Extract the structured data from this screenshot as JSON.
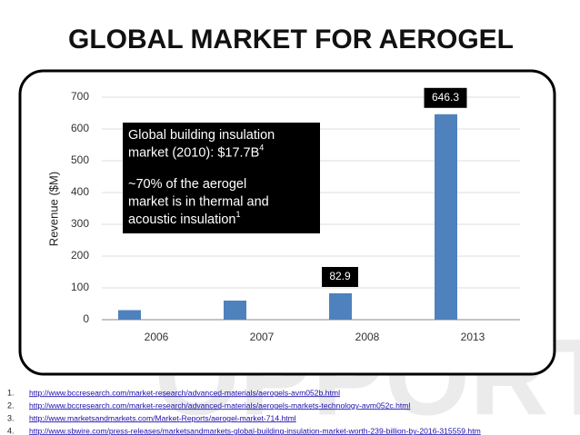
{
  "chart_data": {
    "type": "bar",
    "title": "GLOBAL MARKET FOR AEROGEL",
    "y_label": "Revenue ($M)",
    "categories": [
      "2006",
      "2007",
      "2008",
      "2013"
    ],
    "values": [
      30,
      60,
      82.9,
      646.3
    ],
    "value_labels": [
      null,
      null,
      "82.9",
      "646.3"
    ],
    "color": "#4f81bd",
    "ylim": [
      0,
      700
    ],
    "yticks": [
      0,
      100,
      200,
      300,
      400,
      500,
      600,
      700
    ],
    "grid": true,
    "annotations": [
      {
        "lines": [
          "Global building insulation",
          "market (2010): $17.7B"
        ],
        "sup": "4"
      },
      {
        "lines": [
          "~70% of the aerogel",
          "market is in thermal and",
          "acoustic insulation"
        ],
        "sup": "1"
      }
    ]
  },
  "watermark": "OPPORT",
  "footnotes": [
    {
      "number": "1.",
      "url": "http://www.bccresearch.com/market-research/advanced-materials/aerogels-avm052b.html"
    },
    {
      "number": "2.",
      "url": "http://www.bccresearch.com/market-research/advanced-materials/aerogels-markets-technology-avm052c.html"
    },
    {
      "number": "3.",
      "url": "http://www.marketsandmarkets.com/Market-Reports/aerogel-market-714.html"
    },
    {
      "number": "4.",
      "url": "http://www.sbwire.com/press-releases/marketsandmarkets-global-building-insulation-market-worth-239-billion-by-2016-315559.htm"
    }
  ]
}
